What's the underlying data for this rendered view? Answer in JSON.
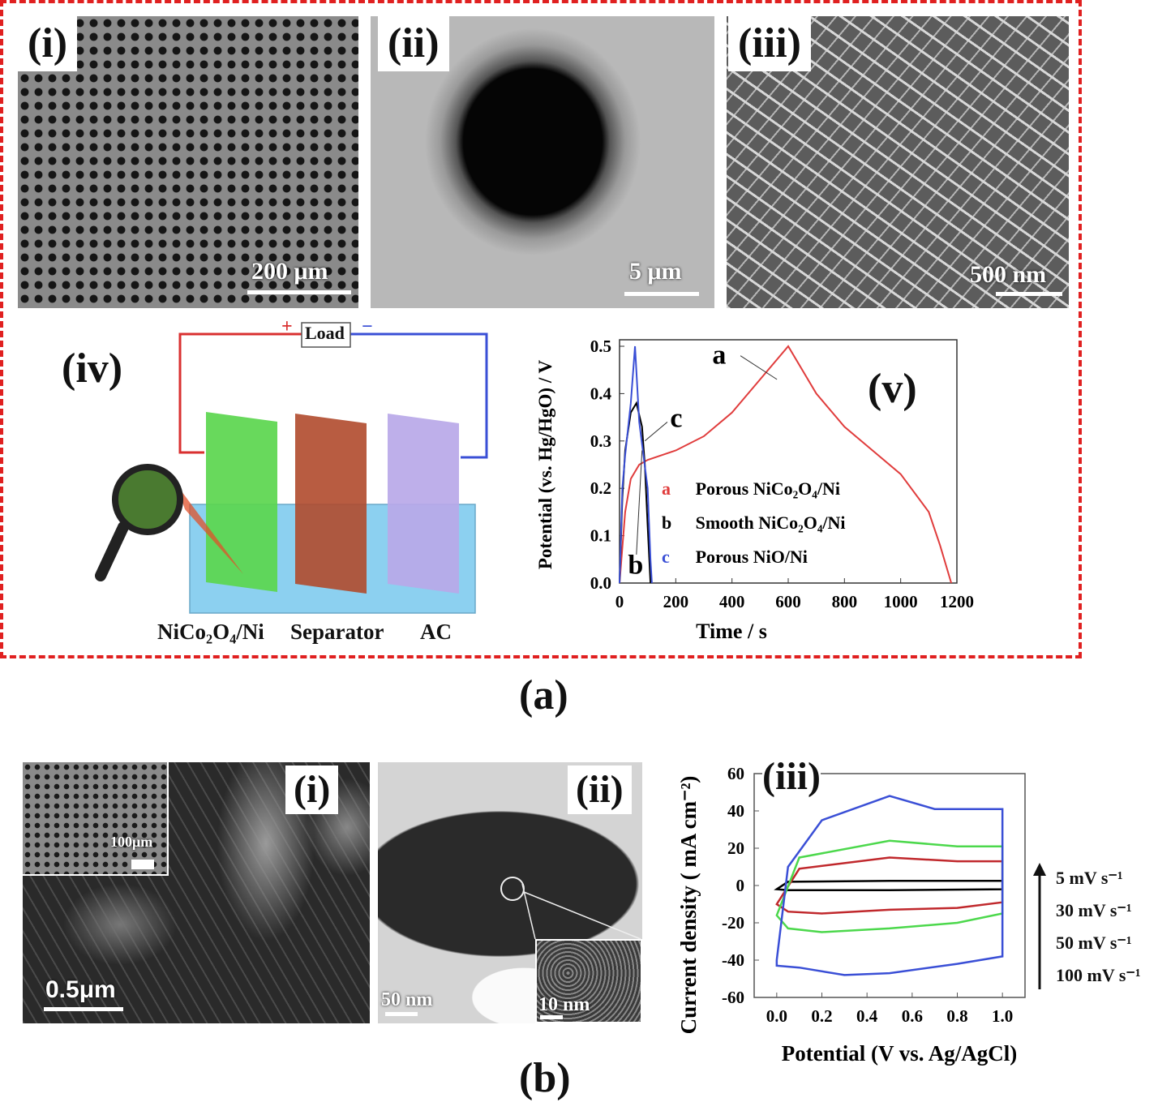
{
  "panel_a": {
    "caption": "(a)",
    "sem1": {
      "label": "(i)",
      "scale": "200 μm"
    },
    "sem2": {
      "label": "(ii)",
      "scale": "5 μm"
    },
    "sem3": {
      "label": "(iii)",
      "scale": "500 nm"
    },
    "device": {
      "label": "(iv)",
      "load": "Load",
      "plus": "+",
      "minus": "−",
      "electrode1": "NiCo₂O₄/Ni",
      "separator": "Separator",
      "electrode2": "AC"
    },
    "chart_label": "(v)"
  },
  "panel_b": {
    "caption": "(b)",
    "sem1": {
      "label": "(i)",
      "scale": "0.5μm",
      "inset_scale": "100μm"
    },
    "tem": {
      "label": "(ii)",
      "scale": "50 nm",
      "inset_scale": "10 nm"
    },
    "chart_label": "(iii)",
    "scan_rates": [
      "5 mV s⁻¹",
      "30 mV s⁻¹",
      "50 mV s⁻¹",
      "100 mV s⁻¹"
    ]
  },
  "colors": {
    "red": "#e03c3c",
    "blue": "#3a4fd6",
    "green": "#4cd84c",
    "darkred": "#c0282c",
    "black": "#000000",
    "frame": "#e02020"
  },
  "chart_data": [
    {
      "type": "line",
      "xlabel": "Time / s",
      "ylabel": "Potential  (vs. Hg/HgO) / V",
      "xlim": [
        0,
        1200
      ],
      "ylim": [
        0,
        0.5
      ],
      "xticks": [
        "0",
        "200",
        "400",
        "600",
        "800",
        "1000",
        "1200"
      ],
      "yticks": [
        "0.0",
        "0.1",
        "0.2",
        "0.3",
        "0.4",
        "0.5"
      ],
      "legend": [
        {
          "key": "a",
          "text": "Porous NiCo₂O₄/Ni",
          "color": "#e03c3c"
        },
        {
          "key": "b",
          "text": "Smooth NiCo₂O₄/Ni",
          "color": "#000000"
        },
        {
          "key": "c",
          "text": "Porous NiO/Ni",
          "color": "#3a4fd6"
        }
      ],
      "annotations": [
        "a",
        "b",
        "c"
      ],
      "series": [
        {
          "name": "a",
          "color": "#e03c3c",
          "x": [
            0,
            20,
            40,
            70,
            100,
            150,
            200,
            300,
            400,
            500,
            600,
            700,
            800,
            900,
            1000,
            1100,
            1140,
            1180
          ],
          "y": [
            0,
            0.15,
            0.22,
            0.25,
            0.26,
            0.27,
            0.28,
            0.31,
            0.36,
            0.43,
            0.5,
            0.4,
            0.33,
            0.28,
            0.23,
            0.15,
            0.08,
            0
          ]
        },
        {
          "name": "b",
          "color": "#000000",
          "x": [
            0,
            10,
            20,
            40,
            60,
            80,
            90,
            100,
            110
          ],
          "y": [
            0,
            0.18,
            0.28,
            0.36,
            0.38,
            0.33,
            0.25,
            0.12,
            0
          ]
        },
        {
          "name": "c",
          "color": "#3a4fd6",
          "x": [
            0,
            10,
            20,
            40,
            55,
            70,
            85,
            100,
            110,
            115
          ],
          "y": [
            0,
            0.2,
            0.27,
            0.38,
            0.5,
            0.34,
            0.27,
            0.2,
            0.05,
            0
          ]
        }
      ]
    },
    {
      "type": "line",
      "xlabel": "Potential (V vs. Ag/AgCl)",
      "ylabel": "Current density ( mA cm⁻²)",
      "xlim": [
        -0.1,
        1.1
      ],
      "ylim": [
        -60,
        60
      ],
      "xticks": [
        "0.0",
        "0.2",
        "0.4",
        "0.6",
        "0.8",
        "1.0"
      ],
      "yticks": [
        "60",
        "40",
        "20",
        "0",
        "-20",
        "-40",
        "-60"
      ],
      "series": [
        {
          "name": "5 mV s⁻¹",
          "color": "#000000",
          "x_upper": [
            0,
            0.05,
            0.5,
            1.0
          ],
          "y_upper": [
            -2,
            2,
            2.5,
            2.5
          ],
          "x_lower": [
            1.0,
            0.5,
            0.05,
            0
          ],
          "y_lower": [
            -2,
            -2.5,
            -2.5,
            -2
          ]
        },
        {
          "name": "30 mV s⁻¹",
          "color": "#c0282c",
          "x_upper": [
            0,
            0.1,
            0.5,
            0.8,
            1.0
          ],
          "y_upper": [
            -10,
            9,
            15,
            13,
            13
          ],
          "x_lower": [
            1.0,
            0.8,
            0.5,
            0.2,
            0.05,
            0
          ],
          "y_lower": [
            -9,
            -12,
            -13,
            -15,
            -14,
            -10
          ]
        },
        {
          "name": "50 mV s⁻¹",
          "color": "#4cd84c",
          "x_upper": [
            0,
            0.1,
            0.5,
            0.8,
            1.0
          ],
          "y_upper": [
            -16,
            15,
            24,
            21,
            21
          ],
          "x_lower": [
            1.0,
            0.8,
            0.5,
            0.2,
            0.05,
            0
          ],
          "y_lower": [
            -15,
            -20,
            -23,
            -25,
            -23,
            -16
          ]
        },
        {
          "name": "100 mV s⁻¹",
          "color": "#3a4fd6",
          "x_upper": [
            0,
            0.05,
            0.2,
            0.5,
            0.7,
            1.0
          ],
          "y_upper": [
            -40,
            10,
            35,
            48,
            41,
            41
          ],
          "x_lower": [
            1.0,
            0.8,
            0.5,
            0.3,
            0.1,
            0
          ],
          "y_lower": [
            -38,
            -42,
            -47,
            -48,
            -44,
            -43
          ]
        }
      ]
    }
  ]
}
